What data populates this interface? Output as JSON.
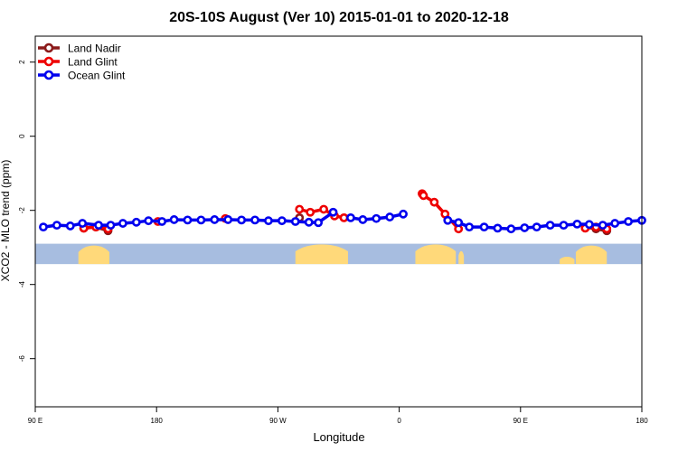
{
  "chart_data": {
    "type": "line",
    "title": "20S-10S August (Ver 10)   2015-01-01 to 2020-12-18",
    "xlabel": "Longitude",
    "ylabel": "XCO2 - MLO trend (ppm)",
    "xlim": [
      90,
      540
    ],
    "ylim": [
      -7.3,
      2.7
    ],
    "x_ticks": [
      {
        "value": 90,
        "label": "90 E"
      },
      {
        "value": 180,
        "label": "180"
      },
      {
        "value": 270,
        "label": "90 W"
      },
      {
        "value": 360,
        "label": "0"
      },
      {
        "value": 450,
        "label": "90 E"
      },
      {
        "value": 540,
        "label": "180"
      }
    ],
    "y_ticks": [
      {
        "value": 2,
        "label": "2"
      },
      {
        "value": 0,
        "label": "0"
      },
      {
        "value": -2,
        "label": "-2"
      },
      {
        "value": -4,
        "label": "-4"
      },
      {
        "value": -6,
        "label": "-6"
      }
    ],
    "grid": false,
    "legend_position": "top-left",
    "landmask": {
      "y_range": [
        -3.45,
        -2.9
      ],
      "ocean_color": "#a7bde0",
      "land_color": "#ffd97a",
      "land_regions": [
        {
          "x_start": 122,
          "x_end": 145,
          "y_top": -2.95
        },
        {
          "x_start": 283,
          "x_end": 322,
          "y_top": -2.92
        },
        {
          "x_start": 372,
          "x_end": 402,
          "y_top": -2.92
        },
        {
          "x_start": 404,
          "x_end": 408,
          "y_top": -3.1
        },
        {
          "x_start": 479,
          "x_end": 490,
          "y_top": -3.25
        },
        {
          "x_start": 491,
          "x_end": 514,
          "y_top": -2.95
        }
      ]
    },
    "series": [
      {
        "name": "Land Nadir",
        "color": "#8b1a1a",
        "segments": [
          [
            [
              126,
              -2.48
            ],
            [
              135,
              -2.45
            ],
            [
              144,
              -2.55
            ]
          ],
          [
            [
              286,
              -2.2
            ]
          ],
          [
            [
              498,
              -2.45
            ],
            [
              506,
              -2.5
            ],
            [
              514,
              -2.55
            ]
          ]
        ]
      },
      {
        "name": "Land Glint",
        "color": "#ee0000",
        "segments": [
          [
            [
              126,
              -2.48
            ],
            [
              135,
              -2.45
            ],
            [
              144,
              -2.5
            ]
          ],
          [
            [
              181,
              -2.3
            ]
          ],
          [
            [
              231,
              -2.22
            ]
          ],
          [
            [
              286,
              -1.97
            ],
            [
              294,
              -2.05
            ],
            [
              304,
              -1.97
            ],
            [
              312,
              -2.15
            ],
            [
              319,
              -2.2
            ]
          ],
          [
            [
              377,
              -1.55
            ],
            [
              378,
              -1.6
            ],
            [
              386,
              -1.78
            ],
            [
              394,
              -2.1
            ],
            [
              404,
              -2.5
            ]
          ],
          [
            [
              498,
              -2.48
            ],
            [
              506,
              -2.45
            ],
            [
              514,
              -2.5
            ]
          ]
        ]
      },
      {
        "name": "Ocean Glint",
        "color": "#0000ee",
        "segments": [
          [
            [
              96,
              -2.45
            ],
            [
              106,
              -2.4
            ],
            [
              116,
              -2.42
            ],
            [
              125,
              -2.35
            ],
            [
              137,
              -2.4
            ],
            [
              146,
              -2.4
            ],
            [
              155,
              -2.35
            ],
            [
              165,
              -2.32
            ],
            [
              174,
              -2.28
            ],
            [
              184,
              -2.3
            ],
            [
              193,
              -2.25
            ],
            [
              203,
              -2.26
            ],
            [
              213,
              -2.26
            ],
            [
              223,
              -2.25
            ],
            [
              233,
              -2.25
            ],
            [
              243,
              -2.26
            ],
            [
              253,
              -2.26
            ],
            [
              263,
              -2.28
            ],
            [
              273,
              -2.28
            ],
            [
              283,
              -2.3
            ],
            [
              293,
              -2.32
            ],
            [
              300,
              -2.33
            ],
            [
              311,
              -2.05
            ]
          ],
          [
            [
              324,
              -2.2
            ],
            [
              333,
              -2.25
            ],
            [
              343,
              -2.22
            ],
            [
              353,
              -2.18
            ],
            [
              363,
              -2.1
            ]
          ],
          [
            [
              396,
              -2.27
            ],
            [
              404,
              -2.33
            ],
            [
              412,
              -2.45
            ],
            [
              423,
              -2.45
            ],
            [
              433,
              -2.48
            ],
            [
              443,
              -2.5
            ],
            [
              453,
              -2.47
            ],
            [
              462,
              -2.45
            ],
            [
              472,
              -2.4
            ],
            [
              482,
              -2.4
            ],
            [
              492,
              -2.37
            ],
            [
              501,
              -2.38
            ],
            [
              511,
              -2.4
            ],
            [
              520,
              -2.35
            ],
            [
              530,
              -2.3
            ],
            [
              540,
              -2.27
            ]
          ]
        ]
      }
    ]
  }
}
